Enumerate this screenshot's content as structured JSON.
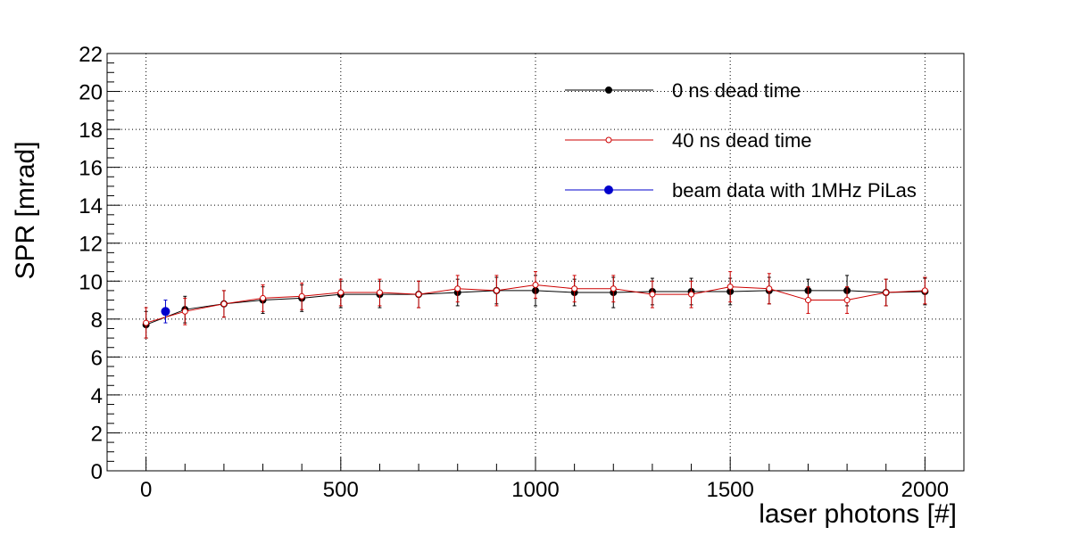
{
  "chart_data": {
    "type": "line",
    "xlabel": "laser photons [#]",
    "ylabel": "SPR [mrad]",
    "xlim": [
      -100,
      2100
    ],
    "ylim": [
      0,
      22
    ],
    "xticks": [
      0,
      500,
      1000,
      1500,
      2000
    ],
    "yticks": [
      0,
      2,
      4,
      6,
      8,
      10,
      12,
      14,
      16,
      18,
      20,
      22
    ],
    "grid": true,
    "legend_position": "top-right",
    "series": [
      {
        "name": "0 ns dead time",
        "color": "#000000",
        "marker": "filled-circle",
        "x": [
          0,
          100,
          200,
          300,
          400,
          500,
          600,
          700,
          800,
          900,
          1000,
          1100,
          1200,
          1300,
          1400,
          1500,
          1600,
          1700,
          1800,
          1900,
          2000
        ],
        "y": [
          7.7,
          8.5,
          8.8,
          9.0,
          9.1,
          9.3,
          9.3,
          9.3,
          9.4,
          9.5,
          9.5,
          9.4,
          9.4,
          9.45,
          9.45,
          9.45,
          9.5,
          9.5,
          9.5,
          9.4,
          9.45
        ],
        "err": [
          0.7,
          0.7,
          0.7,
          0.7,
          0.7,
          0.7,
          0.7,
          0.7,
          0.7,
          0.7,
          0.8,
          0.7,
          0.8,
          0.7,
          0.7,
          0.7,
          0.7,
          0.6,
          0.8,
          0.7,
          0.7
        ]
      },
      {
        "name": "40 ns dead time",
        "color": "#cc0000",
        "marker": "open-circle",
        "x": [
          0,
          100,
          200,
          300,
          400,
          500,
          600,
          700,
          800,
          900,
          1000,
          1100,
          1200,
          1300,
          1400,
          1500,
          1600,
          1700,
          1800,
          1900,
          2000
        ],
        "y": [
          7.8,
          8.4,
          8.8,
          9.1,
          9.2,
          9.4,
          9.4,
          9.3,
          9.6,
          9.5,
          9.8,
          9.6,
          9.6,
          9.3,
          9.3,
          9.7,
          9.6,
          9.0,
          9.0,
          9.4,
          9.5
        ],
        "err": [
          0.8,
          0.7,
          0.7,
          0.7,
          0.7,
          0.7,
          0.7,
          0.7,
          0.7,
          0.8,
          0.7,
          0.7,
          0.7,
          0.7,
          0.7,
          0.8,
          0.8,
          0.7,
          0.7,
          0.7,
          0.7
        ]
      },
      {
        "name": "beam data with 1MHz PiLas",
        "color": "#0000cc",
        "marker": "filled-circle",
        "x": [
          50
        ],
        "y": [
          8.4
        ],
        "err": [
          0.6
        ]
      }
    ]
  }
}
